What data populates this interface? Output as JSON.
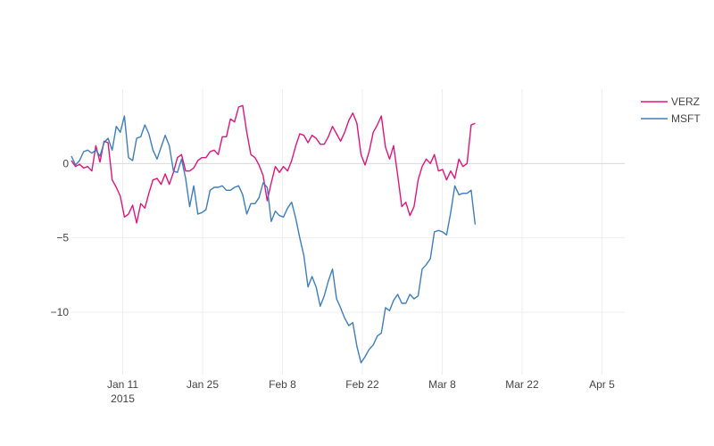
{
  "chart_data": {
    "type": "line",
    "title": "",
    "xlabel": "",
    "ylabel": "",
    "ylim": [
      -14.2,
      5.0
    ],
    "xlim": [
      "2015-01-02",
      "2015-04-09"
    ],
    "grid": true,
    "legend_position": "top-right",
    "x_ticks": [
      {
        "date": "2015-01-11",
        "label": "Jan 11",
        "sublabel": "2015"
      },
      {
        "date": "2015-01-25",
        "label": "Jan 25",
        "sublabel": ""
      },
      {
        "date": "2015-02-08",
        "label": "Feb 8",
        "sublabel": ""
      },
      {
        "date": "2015-02-22",
        "label": "Feb 22",
        "sublabel": ""
      },
      {
        "date": "2015-03-08",
        "label": "Mar 8",
        "sublabel": ""
      },
      {
        "date": "2015-03-22",
        "label": "Mar 22",
        "sublabel": ""
      },
      {
        "date": "2015-04-05",
        "label": "Apr 5",
        "sublabel": ""
      }
    ],
    "y_ticks": [
      {
        "value": 0,
        "label": "0"
      },
      {
        "value": -5,
        "label": "−5"
      },
      {
        "value": -10,
        "label": "−10"
      }
    ],
    "x_start": "2015-01-02",
    "x_step_days": 0.715,
    "series": [
      {
        "name": "VERZ",
        "color": "#e0157b",
        "values": [
          0.2,
          -0.2,
          -0.05,
          -0.3,
          -0.2,
          -0.5,
          1.2,
          0.1,
          1.5,
          1.4,
          -1.1,
          -1.6,
          -2.2,
          -3.6,
          -3.4,
          -2.8,
          -4.0,
          -2.7,
          -3.0,
          -2.0,
          -1.1,
          -1.0,
          -1.4,
          -0.7,
          -1.4,
          -0.6,
          0.4,
          0.6,
          -0.5,
          -0.5,
          -0.3,
          0.2,
          0.4,
          0.4,
          0.8,
          0.9,
          0.6,
          1.8,
          1.8,
          3.0,
          2.8,
          3.8,
          3.9,
          2.1,
          0.6,
          0.4,
          -0.1,
          -0.8,
          -2.5,
          -1.3,
          -0.2,
          -0.6,
          -0.2,
          -0.5,
          0.2,
          1.2,
          2.0,
          1.9,
          1.4,
          1.9,
          1.7,
          1.3,
          1.3,
          1.8,
          2.5,
          2.0,
          1.5,
          2.1,
          2.9,
          3.4,
          2.7,
          0.6,
          -0.1,
          0.8,
          2.1,
          2.6,
          3.2,
          1.1,
          0.3,
          1.2,
          -0.8,
          -2.9,
          -2.6,
          -3.5,
          -2.9,
          -1.1,
          -0.2,
          0.3,
          0.0,
          0.6,
          -0.5,
          -0.4,
          -1.1,
          -0.5,
          -1.0,
          0.3,
          -0.2,
          0.0,
          2.6,
          2.7
        ]
      },
      {
        "name": "MSFT",
        "color": "#3d7ebf",
        "values": [
          0.5,
          -0.1,
          0.2,
          0.8,
          0.9,
          0.7,
          0.9,
          0.5,
          1.4,
          1.7,
          0.9,
          2.5,
          2.1,
          3.2,
          0.4,
          0.2,
          1.7,
          1.8,
          2.6,
          2.0,
          0.9,
          0.3,
          1.1,
          1.9,
          1.2,
          -0.5,
          -0.6,
          0.3,
          -1.0,
          -2.9,
          -1.5,
          -3.4,
          -3.3,
          -3.1,
          -1.8,
          -1.6,
          -1.6,
          -1.5,
          -1.8,
          -1.8,
          -1.6,
          -1.5,
          -2.1,
          -3.4,
          -2.7,
          -2.7,
          -2.3,
          -1.3,
          -1.6,
          -3.9,
          -3.2,
          -3.5,
          -3.6,
          -3.0,
          -2.6,
          -3.7,
          -5.0,
          -6.2,
          -8.3,
          -7.6,
          -8.3,
          -9.6,
          -8.9,
          -7.9,
          -7.1,
          -9.1,
          -9.7,
          -10.4,
          -10.9,
          -10.7,
          -12.3,
          -13.4,
          -13.0,
          -12.5,
          -12.2,
          -11.6,
          -11.4,
          -9.7,
          -9.9,
          -9.2,
          -8.8,
          -9.4,
          -9.4,
          -8.8,
          -9.1,
          -8.9,
          -7.1,
          -6.8,
          -6.4,
          -4.6,
          -4.5,
          -4.6,
          -4.8,
          -3.3,
          -1.5,
          -2.1,
          -2.0,
          -2.0,
          -1.8,
          -4.1
        ]
      }
    ]
  }
}
